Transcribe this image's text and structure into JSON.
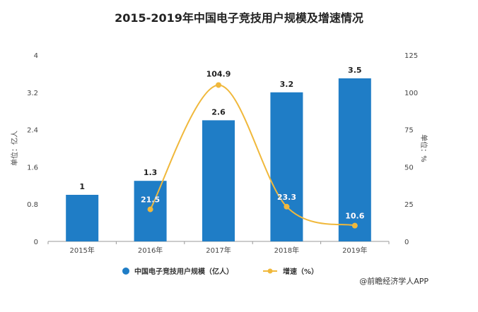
{
  "chart_data": {
    "type": "bar",
    "title": "2015-2019年中国电子竞技用户规模及增速情况",
    "categories": [
      "2015年",
      "2016年",
      "2017年",
      "2018年",
      "2019年"
    ],
    "series": [
      {
        "name": "中国电子竞技用户规模（亿人）",
        "type": "bar",
        "axis": "left",
        "values": [
          1,
          1.3,
          2.6,
          3.2,
          3.5
        ],
        "labels": [
          "1",
          "1.3",
          "2.6",
          "3.2",
          "3.5"
        ],
        "color": "#1f7dc6"
      },
      {
        "name": "增速（%）",
        "type": "line",
        "axis": "right",
        "values": [
          null,
          21.5,
          104.9,
          23.3,
          10.6
        ],
        "labels": [
          "",
          "21.5",
          "104.9",
          "23.3",
          "10.6"
        ],
        "color": "#f0b83b"
      }
    ],
    "ylabel_left": "单位：亿人",
    "ylabel_right": "单位：%",
    "ylim_left": [
      0,
      4
    ],
    "ylim_right": [
      0,
      125
    ],
    "yticks_left": [
      "0",
      "0.8",
      "1.6",
      "2.4",
      "3.2",
      "4"
    ],
    "yticks_right": [
      "0",
      "25",
      "50",
      "75",
      "100",
      "125"
    ],
    "legend": "bottom",
    "grid": false
  },
  "credit": "@前瞻经济学人APP"
}
